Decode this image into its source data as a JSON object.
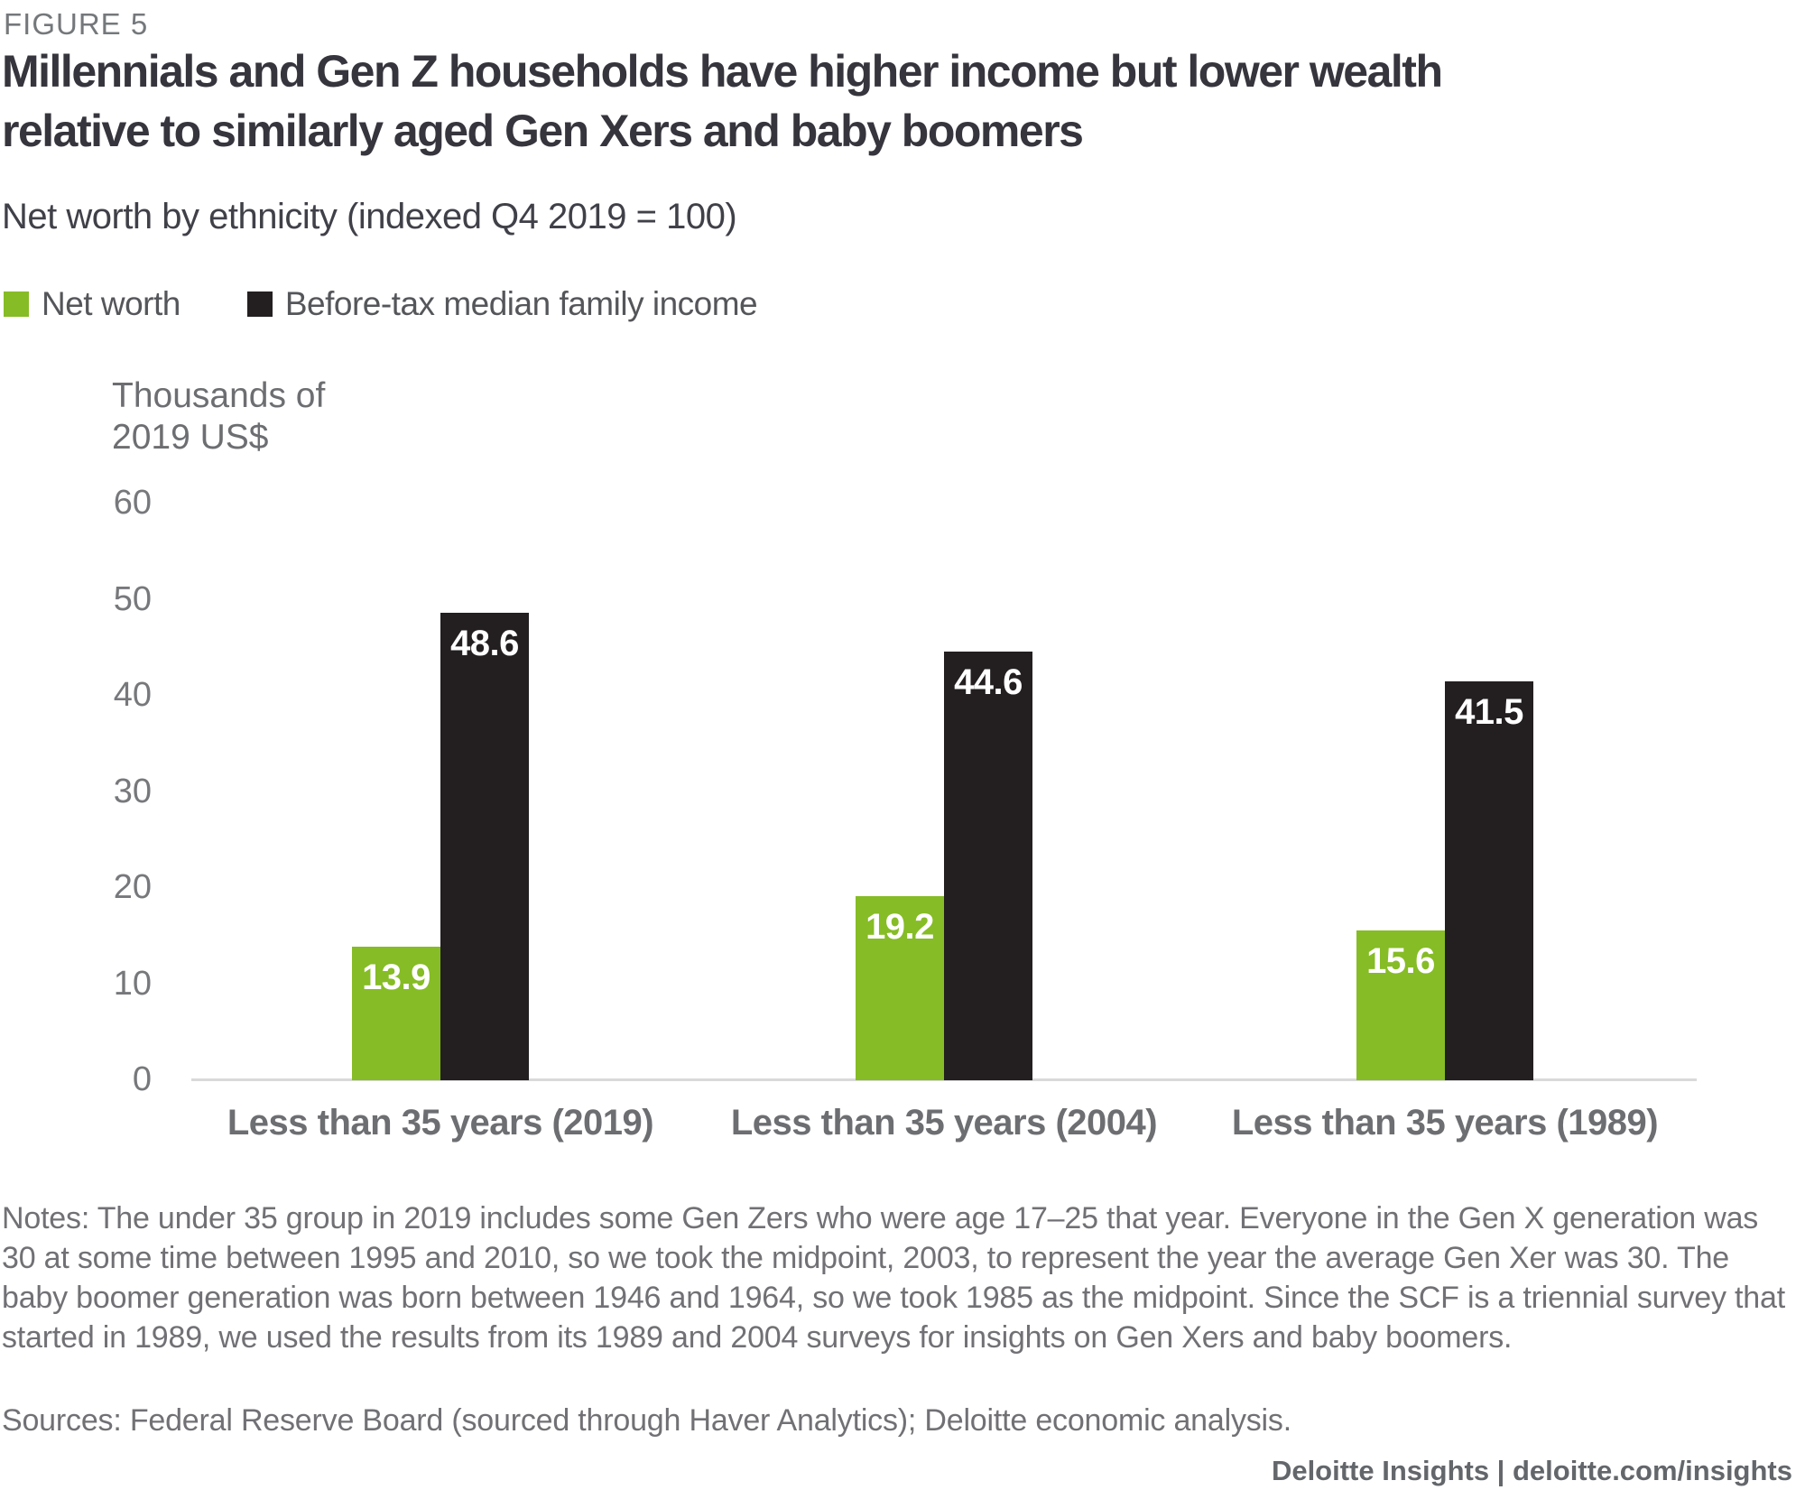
{
  "figure_label": "FIGURE 5",
  "title": "Millennials and Gen Z households have higher income but lower wealth\nrelative to similarly aged Gen Xers and baby boomers",
  "subtitle": "Net worth by ethnicity (indexed Q4 2019 = 100)",
  "legend": [
    {
      "label": "Net worth",
      "color": "#86BC25"
    },
    {
      "label": "Before-tax median family income",
      "color": "#231F20"
    }
  ],
  "chart_data": {
    "type": "bar",
    "title": "Millennials and Gen Z households have higher income but lower wealth relative to similarly aged Gen Xers and baby boomers",
    "subtitle": "Net worth by ethnicity (indexed Q4 2019 = 100)",
    "unit_label": "Thousands of\n2019 US$",
    "categories": [
      "Less than 35 years (2019)",
      "Less than 35 years (2004)",
      "Less than 35 years (1989)"
    ],
    "series": [
      {
        "name": "Net worth",
        "color": "#86BC25",
        "values": [
          13.9,
          19.2,
          15.6
        ]
      },
      {
        "name": "Before-tax median family income",
        "color": "#231F20",
        "values": [
          48.6,
          44.6,
          41.5
        ]
      }
    ],
    "ylabel": "Thousands of 2019 US$",
    "xlabel": "",
    "ylim": [
      0,
      60
    ],
    "yticks": [
      0,
      10,
      20,
      30,
      40,
      50,
      60
    ],
    "grid": false,
    "legend_position": "top-left",
    "value_labels": "inside-top-white",
    "colors": {
      "axis_line": "#D9D9D9",
      "tick_text": "#77787B",
      "category_text": "#6D6E71"
    }
  },
  "notes": "Notes: The under 35 group in 2019 includes some Gen Zers who were age 17–25 that year. Everyone in the Gen X generation was 30 at some time between 1995 and 2010, so we took the midpoint, 2003, to represent the year the average Gen Xer was 30. The baby boomer generation was born between 1946 and 1964, so we took 1985 as the midpoint. Since the SCF is a triennial survey that started in 1989, we used the results from its 1989 and 2004 surveys for insights on Gen Xers and baby boomers.",
  "sources": "Sources: Federal Reserve Board (sourced through Haver Analytics); Deloitte economic analysis.",
  "footer": "Deloitte Insights | deloitte.com/insights"
}
